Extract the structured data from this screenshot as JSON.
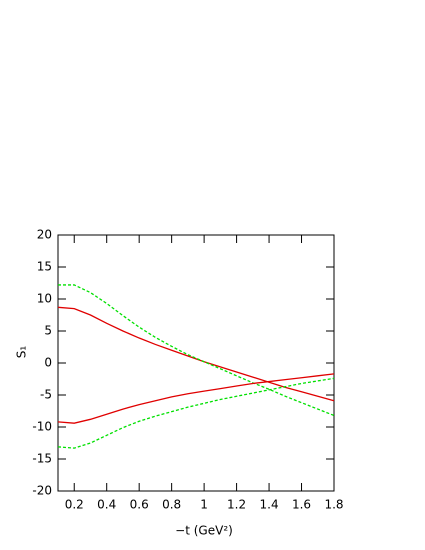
{
  "chart_data": {
    "type": "line",
    "xlabel": "−t (GeV²)",
    "ylabel": "S₁",
    "x": [
      0.1,
      0.2,
      0.3,
      0.4,
      0.5,
      0.6,
      0.7,
      0.8,
      0.9,
      1.0,
      1.1,
      1.2,
      1.3,
      1.4,
      1.5,
      1.6,
      1.7,
      1.8
    ],
    "series": [
      {
        "color": "#e00000",
        "dashed": false,
        "values": [
          8.7,
          8.5,
          7.5,
          6.2,
          5.0,
          3.9,
          2.9,
          2.0,
          1.1,
          0.2,
          -0.6,
          -1.4,
          -2.2,
          -3.0,
          -3.8,
          -4.5,
          -5.2,
          -5.9
        ]
      },
      {
        "color": "#00e000",
        "dashed": true,
        "values": [
          12.2,
          12.2,
          11.0,
          9.3,
          7.4,
          5.6,
          4.0,
          2.6,
          1.3,
          0.2,
          -0.9,
          -2.0,
          -3.1,
          -4.1,
          -5.2,
          -6.2,
          -7.2,
          -8.2
        ]
      },
      {
        "color": "#e00000",
        "dashed": false,
        "values": [
          -9.2,
          -9.4,
          -8.8,
          -8.0,
          -7.2,
          -6.5,
          -5.9,
          -5.3,
          -4.8,
          -4.4,
          -4.0,
          -3.6,
          -3.2,
          -2.9,
          -2.6,
          -2.3,
          -2.0,
          -1.7
        ]
      },
      {
        "color": "#00e000",
        "dashed": true,
        "values": [
          -13.1,
          -13.3,
          -12.5,
          -11.3,
          -10.1,
          -9.1,
          -8.3,
          -7.6,
          -6.9,
          -6.3,
          -5.7,
          -5.2,
          -4.7,
          -4.2,
          -3.7,
          -3.2,
          -2.8,
          -2.4
        ]
      }
    ],
    "xlim": [
      0.1,
      1.8
    ],
    "xticks": [
      0.2,
      0.4,
      0.6,
      0.8,
      1,
      1.2,
      1.4,
      1.6,
      1.8
    ],
    "ylim": [
      -20,
      20
    ],
    "yticks": [
      -20,
      -15,
      -10,
      -5,
      0,
      5,
      10,
      15,
      20
    ],
    "grid": false
  }
}
